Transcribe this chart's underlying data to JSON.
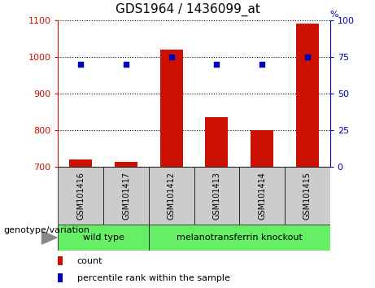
{
  "title": "GDS1964 / 1436099_at",
  "samples": [
    "GSM101416",
    "GSM101417",
    "GSM101412",
    "GSM101413",
    "GSM101414",
    "GSM101415"
  ],
  "counts": [
    720,
    715,
    1020,
    835,
    800,
    1090
  ],
  "percentiles": [
    70,
    70,
    75,
    70,
    70,
    75
  ],
  "ylim_left": [
    700,
    1100
  ],
  "ylim_right": [
    0,
    100
  ],
  "yticks_left": [
    700,
    800,
    900,
    1000,
    1100
  ],
  "yticks_right": [
    0,
    25,
    50,
    75,
    100
  ],
  "bar_color": "#cc1100",
  "dot_color": "#0000bb",
  "groups": [
    {
      "label": "wild type",
      "start": 0,
      "end": 1
    },
    {
      "label": "melanotransferrin knockout",
      "start": 2,
      "end": 5
    }
  ],
  "group_color": "#66ee66",
  "sample_bg_color": "#cccccc",
  "legend_count_color": "#cc1100",
  "legend_percentile_color": "#0000bb",
  "genotype_label": "genotype/variation",
  "legend_count_label": "count",
  "legend_percentile_label": "percentile rank within the sample",
  "bar_width": 0.5,
  "plot_bg_color": "#ffffff",
  "grid_color": "#000000",
  "left_tick_color": "#cc1100",
  "right_tick_color": "#0000bb",
  "title_fontsize": 11,
  "tick_fontsize": 8,
  "sample_fontsize": 7,
  "group_fontsize": 8,
  "legend_fontsize": 8,
  "genotype_fontsize": 8
}
